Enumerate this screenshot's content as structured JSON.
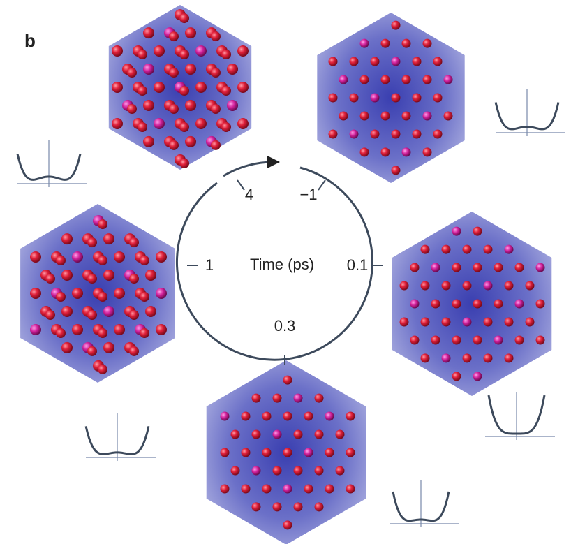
{
  "panel_label": "b",
  "center_label": "Time (ps)",
  "time_labels": [
    "4",
    "−1",
    "1",
    "0.1",
    "0.3"
  ]
}
